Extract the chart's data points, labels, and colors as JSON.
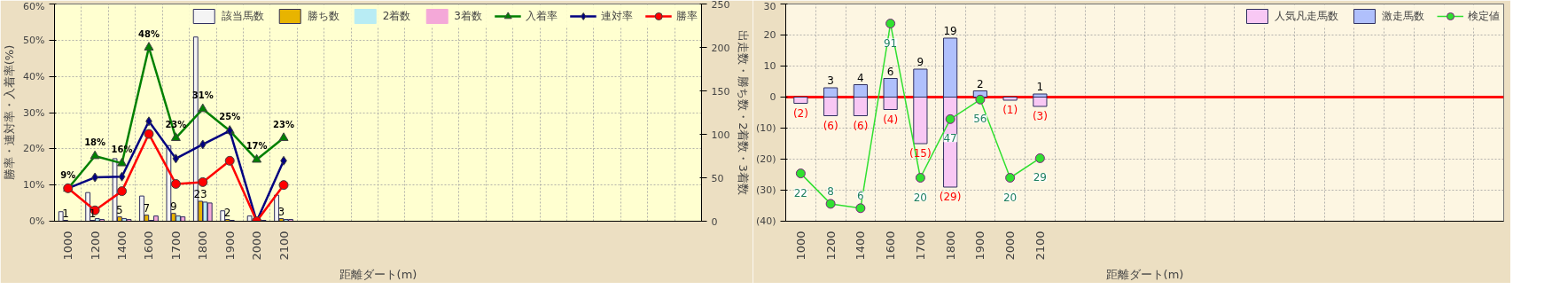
{
  "chart_data": [
    {
      "type": "bar",
      "categories": [
        "1000",
        "1200",
        "1400",
        "1600",
        "1700",
        "1800",
        "1900",
        "2000",
        "2100",
        null,
        null,
        null,
        null,
        null,
        null,
        null,
        null,
        null,
        null,
        null,
        null,
        null,
        null,
        null
      ],
      "xlabel": "距離ダート(m)",
      "ylabel": "勝率・連対率・入着率(%)",
      "y2label": "出走数・勝ち数・2着数・3着数",
      "ylim": [
        0,
        60
      ],
      "yticks": [
        {
          "value": 0,
          "label": "0%"
        },
        {
          "value": 10,
          "label": "10%"
        },
        {
          "value": 20,
          "label": "20%"
        },
        {
          "value": 30,
          "label": "30%"
        },
        {
          "value": 40,
          "label": "40%"
        },
        {
          "value": 50,
          "label": "50%"
        },
        {
          "value": 60,
          "label": "60%"
        }
      ],
      "y2lim": [
        0,
        250
      ],
      "y2ticks": [
        0,
        50,
        100,
        150,
        200,
        250
      ],
      "grid": true,
      "legend": "top right",
      "series": [
        {
          "name": "該当馬数",
          "color": "#f4f4f4",
          "axis": "y2",
          "values": [
            11,
            33,
            72,
            29,
            87,
            212,
            12,
            6,
            30,
            null,
            null,
            null,
            null,
            null,
            null,
            null,
            null,
            null,
            null,
            null,
            null,
            null,
            null,
            null
          ]
        },
        {
          "name": "勝ち数",
          "color": "#e8b400",
          "axis": "y2",
          "values": [
            1,
            1,
            5,
            7,
            9,
            23,
            2,
            0,
            3,
            null,
            null,
            null,
            null,
            null,
            null,
            null,
            null,
            null,
            null,
            null,
            null,
            null,
            null,
            null
          ],
          "value_labels": [
            "1",
            "1",
            "5",
            "7",
            "9",
            "23",
            "2",
            null,
            "3",
            null,
            null,
            null,
            null,
            null,
            null,
            null,
            null,
            null,
            null,
            null,
            null,
            null,
            null,
            null
          ]
        },
        {
          "name": "2着数",
          "color": "#b8ecf4",
          "axis": "y2",
          "values": [
            0,
            3,
            3,
            1,
            6,
            22,
            1,
            0,
            2,
            null,
            null,
            null,
            null,
            null,
            null,
            null,
            null,
            null,
            null,
            null,
            null,
            null,
            null,
            null
          ]
        },
        {
          "name": "3着数",
          "color": "#f4a8d8",
          "axis": "y2",
          "values": [
            0,
            2,
            2,
            6,
            5,
            21,
            0,
            1,
            2,
            null,
            null,
            null,
            null,
            null,
            null,
            null,
            null,
            null,
            null,
            null,
            null,
            null,
            null,
            null
          ]
        },
        {
          "name": "入着率",
          "type": "line",
          "color": "#008000",
          "marker": "triangle",
          "values": [
            9,
            18,
            16,
            48,
            23,
            31,
            25,
            17,
            23,
            null,
            null,
            null,
            null,
            null,
            null,
            null,
            null,
            null,
            null,
            null,
            null,
            null,
            null,
            null
          ],
          "value_labels": [
            "9%",
            "18%",
            "16%",
            "48%",
            "23%",
            "31%",
            "25%",
            "17%",
            "23%",
            null,
            null,
            null,
            null,
            null,
            null,
            null,
            null,
            null,
            null,
            null,
            null,
            null,
            null,
            null
          ]
        },
        {
          "name": "連対率",
          "type": "line",
          "color": "#000080",
          "marker": "diamond",
          "values": [
            9.1,
            12.1,
            12.3,
            27.6,
            17.3,
            21.2,
            25,
            0,
            16.7,
            null,
            null,
            null,
            null,
            null,
            null,
            null,
            null,
            null,
            null,
            null,
            null,
            null,
            null,
            null
          ]
        },
        {
          "name": "勝率",
          "type": "line",
          "color": "#ff0000",
          "marker": "circle",
          "values": [
            9.1,
            3,
            8.3,
            24.1,
            10.3,
            10.8,
            16.7,
            0,
            10,
            null,
            null,
            null,
            null,
            null,
            null,
            null,
            null,
            null,
            null,
            null,
            null,
            null,
            null,
            null
          ]
        }
      ]
    },
    {
      "type": "bar",
      "stacked": true,
      "categories": [
        "1000",
        "1200",
        "1400",
        "1600",
        "1700",
        "1800",
        "1900",
        "2000",
        "2100",
        null,
        null,
        null,
        null,
        null,
        null,
        null,
        null,
        null,
        null,
        null,
        null,
        null,
        null,
        null
      ],
      "xlabel": "距離ダート(m)",
      "ylim": [
        -40,
        30
      ],
      "yticks": [
        30,
        20,
        10,
        0,
        {
          "value": -10,
          "label": "(10)"
        },
        {
          "value": -20,
          "label": "(20)"
        },
        {
          "value": -30,
          "label": "(30)"
        },
        {
          "value": -40,
          "label": "(40)"
        }
      ],
      "y2lim": [
        0,
        100
      ],
      "grid": true,
      "legend": "top right",
      "ref_lines": [
        {
          "axis": "y",
          "value": 0,
          "color": "#ff0000"
        }
      ],
      "series": [
        {
          "name": "人気凡走馬数",
          "color": "#f8c8f4",
          "values": [
            -2,
            -6,
            -6,
            -4,
            -15,
            -29,
            null,
            -1,
            -3,
            null,
            null,
            null,
            null,
            null,
            null,
            null,
            null,
            null,
            null,
            null,
            null,
            null,
            null,
            null
          ],
          "value_labels": [
            "(2)",
            "(6)",
            "(6)",
            "(4)",
            "(15)",
            "(29)",
            null,
            "(1)",
            "(3)",
            null,
            null,
            null,
            null,
            null,
            null,
            null,
            null,
            null,
            null,
            null,
            null,
            null,
            null,
            null
          ]
        },
        {
          "name": "激走馬数",
          "color": "#b0c0fc",
          "values": [
            null,
            3,
            4,
            6,
            9,
            19,
            2,
            null,
            1,
            null,
            null,
            null,
            null,
            null,
            null,
            null,
            null,
            null,
            null,
            null,
            null,
            null,
            null,
            null
          ],
          "data_labels": true
        },
        {
          "name": "検定値",
          "type": "line",
          "axis": "y2",
          "color": "#30e030",
          "marker": "circle",
          "values": [
            22,
            8,
            6,
            91,
            20,
            47,
            56,
            20,
            29,
            null,
            null,
            null,
            null,
            null,
            null,
            null,
            null,
            null,
            null,
            null,
            null,
            null,
            null,
            null
          ],
          "data_labels": true
        }
      ]
    }
  ]
}
